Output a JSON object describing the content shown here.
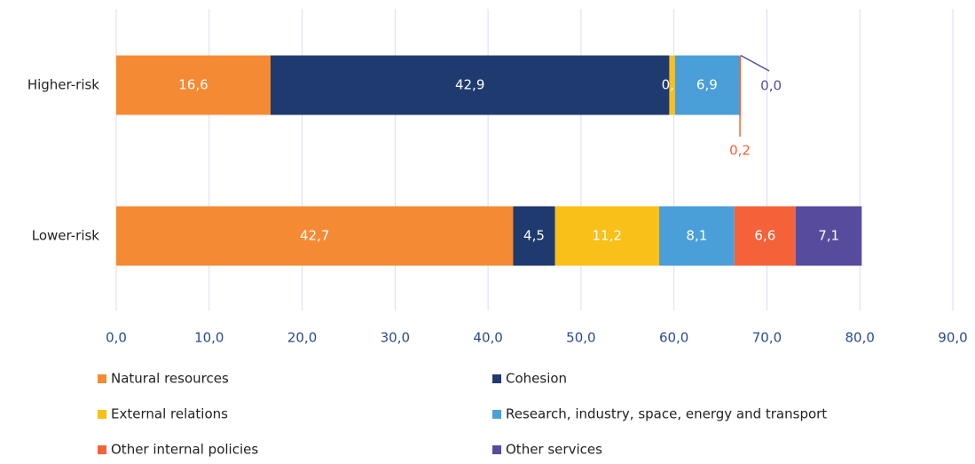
{
  "chart_data": {
    "type": "bar",
    "orientation": "horizontal",
    "stacked": true,
    "categories": [
      "Higher-risk",
      "Lower-risk"
    ],
    "series": [
      {
        "name": "Natural resources",
        "color": "#f58a35",
        "values": [
          16.6,
          42.7
        ],
        "value_labels": [
          "16,6",
          "42,7"
        ]
      },
      {
        "name": "Cohesion",
        "color": "#1f3a6e",
        "values": [
          42.9,
          4.5
        ],
        "value_labels": [
          "42,9",
          "4,5"
        ]
      },
      {
        "name": "External relations",
        "color": "#f8c018",
        "values": [
          0.6,
          11.2
        ],
        "value_labels": [
          "0,6",
          "11,2"
        ]
      },
      {
        "name": "Research, industry, space, energy and transport",
        "color": "#4a9fd8",
        "values": [
          6.9,
          8.1
        ],
        "value_labels": [
          "6,9",
          "8,1"
        ]
      },
      {
        "name": "Other internal policies",
        "color": "#f4623a",
        "values": [
          0.2,
          6.6
        ],
        "value_labels": [
          "0,2",
          "6,6"
        ]
      },
      {
        "name": "Other services",
        "color": "#574b9e",
        "values": [
          0.0,
          7.1
        ],
        "value_labels": [
          "0,0",
          "7,1"
        ]
      }
    ],
    "xlim": [
      0,
      90
    ],
    "xticks": [
      {
        "value": 0,
        "label": "0,0"
      },
      {
        "value": 10,
        "label": "10,0"
      },
      {
        "value": 20,
        "label": "20,0"
      },
      {
        "value": 30,
        "label": "30,0"
      },
      {
        "value": 40,
        "label": "40,0"
      },
      {
        "value": 50,
        "label": "50,0"
      },
      {
        "value": 60,
        "label": "60,0"
      },
      {
        "value": 70,
        "label": "70,0"
      },
      {
        "value": 80,
        "label": "80,0"
      },
      {
        "value": 90,
        "label": "90,0"
      }
    ],
    "grid": true,
    "legend": "bottom"
  }
}
